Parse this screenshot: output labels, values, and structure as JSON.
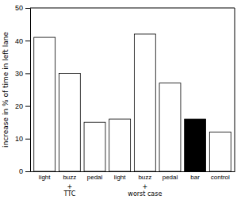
{
  "chart_data": {
    "type": "bar",
    "categories": [
      "light",
      "buzz",
      "pedal",
      "light",
      "buzz",
      "pedal",
      "bar",
      "control"
    ],
    "values": [
      41,
      30,
      15,
      16,
      42,
      27,
      16,
      12
    ],
    "colors": [
      "white",
      "white",
      "white",
      "white",
      "white",
      "white",
      "black",
      "white"
    ],
    "ylabel": "increase in % of time in left lane",
    "annotations": [
      "+\nTTC",
      "+\nworst case"
    ],
    "ylim": [
      0,
      50
    ],
    "yticks": [
      0,
      10,
      20,
      30,
      40,
      50
    ],
    "grid": false
  }
}
